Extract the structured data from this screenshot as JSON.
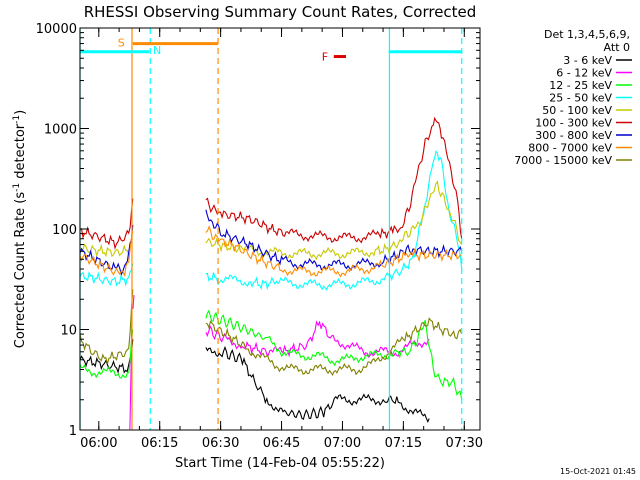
{
  "chart_data": {
    "type": "line",
    "title": "RHESSI Observing Summary Count Rates, Corrected",
    "xlabel": "Start Time (14-Feb-04 05:55:22)",
    "ylabel": "Corrected Count Rate (s⁻¹ detector⁻¹)",
    "ylabel_parts": {
      "main": "Corrected Count Rate (s",
      "sup1": "-1",
      "mid": " detector",
      "sup2": "-1",
      "end": ")"
    },
    "x_unit": "minutes after 05:55:22",
    "xlim": [
      0,
      98.5
    ],
    "ylim": [
      1,
      10000
    ],
    "yscale": "log",
    "x_ticks": [
      {
        "x": 4.63,
        "label": "06:00"
      },
      {
        "x": 19.63,
        "label": "06:15"
      },
      {
        "x": 34.63,
        "label": "06:30"
      },
      {
        "x": 49.63,
        "label": "06:45"
      },
      {
        "x": 64.63,
        "label": "07:00"
      },
      {
        "x": 79.63,
        "label": "07:15"
      },
      {
        "x": 94.63,
        "label": "07:30"
      }
    ],
    "y_ticks": [
      {
        "y": 1,
        "label": "1"
      },
      {
        "y": 10,
        "label": "10"
      },
      {
        "y": 100,
        "label": "100"
      },
      {
        "y": 1000,
        "label": "1000"
      },
      {
        "y": 10000,
        "label": "10000"
      }
    ],
    "legend_header": [
      "Det 1,3,4,5,6,9,",
      "Att 0"
    ],
    "legend_position": "right",
    "series": [
      {
        "name": "3 - 6 keV",
        "color": "#000000",
        "segments": [
          [
            [
              0,
              5
            ],
            [
              6,
              4.5
            ],
            [
              12,
              4
            ],
            [
              13,
              8
            ]
          ],
          [
            [
              31,
              6
            ],
            [
              35,
              6
            ],
            [
              40,
              5
            ],
            [
              43,
              3
            ],
            [
              46,
              2
            ],
            [
              50,
              1.5
            ],
            [
              55,
              1.4
            ],
            [
              60,
              1.5
            ],
            [
              63,
              2
            ],
            [
              67,
              2
            ],
            [
              71,
              2
            ],
            [
              75,
              2
            ],
            [
              78,
              2
            ],
            [
              82,
              1.5
            ],
            [
              86,
              1.3
            ]
          ]
        ]
      },
      {
        "name": "6 - 12 keV",
        "color": "#ff00ff",
        "segments": [
          [
            [
              12.3,
              1
            ],
            [
              12.8,
              15
            ],
            [
              13.3,
              22
            ]
          ],
          [
            [
              31,
              10
            ],
            [
              36,
              8
            ],
            [
              40,
              7
            ],
            [
              46,
              6
            ],
            [
              50,
              6
            ],
            [
              56,
              7
            ],
            [
              59,
              12
            ],
            [
              62,
              8
            ],
            [
              66,
              7
            ],
            [
              70,
              6
            ],
            [
              74,
              6
            ],
            [
              78,
              6
            ],
            [
              82,
              7
            ],
            [
              86,
              8
            ]
          ]
        ]
      },
      {
        "name": "12 - 25 keV",
        "color": "#00ff00",
        "segments": [
          [
            [
              0,
              4
            ],
            [
              4,
              3.8
            ],
            [
              8,
              3.7
            ],
            [
              12,
              3.6
            ],
            [
              13,
              10
            ]
          ],
          [
            [
              31,
              14
            ],
            [
              36,
              12
            ],
            [
              41,
              10
            ],
            [
              46,
              8
            ],
            [
              50,
              6
            ],
            [
              54,
              5.5
            ],
            [
              58,
              5.5
            ],
            [
              62,
              5
            ],
            [
              66,
              5
            ],
            [
              70,
              5.5
            ],
            [
              74,
              5.5
            ],
            [
              78,
              6
            ],
            [
              81,
              6
            ],
            [
              83,
              8
            ],
            [
              85,
              12
            ],
            [
              87,
              4
            ],
            [
              89,
              3
            ],
            [
              92,
              3
            ],
            [
              94,
              2
            ]
          ]
        ]
      },
      {
        "name": "25 - 50 keV",
        "color": "#00ffff",
        "segments": [
          [
            [
              0,
              34
            ],
            [
              3,
              33
            ],
            [
              6,
              31
            ],
            [
              9,
              30
            ],
            [
              12,
              32
            ],
            [
              13,
              45
            ]
          ],
          [
            [
              31,
              34
            ],
            [
              34,
              32
            ],
            [
              38,
              31
            ],
            [
              42,
              30
            ],
            [
              45,
              28
            ],
            [
              48,
              30
            ],
            [
              52,
              29
            ],
            [
              56,
              28
            ],
            [
              60,
              28
            ],
            [
              64,
              28
            ],
            [
              68,
              29
            ],
            [
              72,
              30
            ],
            [
              76,
              34
            ],
            [
              79,
              38
            ],
            [
              82,
              50
            ],
            [
              85,
              180
            ],
            [
              87,
              480
            ],
            [
              88,
              600
            ],
            [
              89,
              450
            ],
            [
              91,
              140
            ],
            [
              93,
              80
            ],
            [
              94,
              40
            ]
          ]
        ]
      },
      {
        "name": "50 - 100 keV",
        "color": "#c8c800",
        "segments": [
          [
            [
              0,
              65
            ],
            [
              3,
              62
            ],
            [
              6,
              60
            ],
            [
              9,
              58
            ],
            [
              12,
              62
            ],
            [
              13,
              80
            ]
          ],
          [
            [
              31,
              75
            ],
            [
              34,
              70
            ],
            [
              37,
              66
            ],
            [
              40,
              63
            ],
            [
              44,
              60
            ],
            [
              48,
              58
            ],
            [
              52,
              57
            ],
            [
              56,
              57
            ],
            [
              60,
              57
            ],
            [
              64,
              57
            ],
            [
              68,
              58
            ],
            [
              72,
              60
            ],
            [
              75,
              62
            ],
            [
              78,
              70
            ],
            [
              80,
              85
            ],
            [
              82,
              100
            ],
            [
              84,
              120
            ],
            [
              86,
              200
            ],
            [
              88,
              280
            ],
            [
              90,
              180
            ],
            [
              92,
              120
            ],
            [
              94,
              70
            ]
          ]
        ]
      },
      {
        "name": "100 - 300 keV",
        "color": "#cc0000",
        "segments": [
          [
            [
              0,
              95
            ],
            [
              3,
              88
            ],
            [
              6,
              80
            ],
            [
              9,
              72
            ],
            [
              12,
              90
            ],
            [
              13,
              200
            ]
          ],
          [
            [
              31,
              190
            ],
            [
              33,
              155
            ],
            [
              35,
              140
            ],
            [
              38,
              135
            ],
            [
              41,
              128
            ],
            [
              44,
              115
            ],
            [
              47,
              100
            ],
            [
              50,
              92
            ],
            [
              54,
              87
            ],
            [
              58,
              85
            ],
            [
              62,
              83
            ],
            [
              66,
              82
            ],
            [
              70,
              83
            ],
            [
              74,
              88
            ],
            [
              77,
              95
            ],
            [
              79,
              100
            ],
            [
              81,
              160
            ],
            [
              83,
              350
            ],
            [
              85,
              700
            ],
            [
              87,
              1100
            ],
            [
              88,
              1200
            ],
            [
              89,
              900
            ],
            [
              91,
              450
            ],
            [
              93,
              180
            ],
            [
              94,
              80
            ]
          ]
        ]
      },
      {
        "name": "300 - 800 keV",
        "color": "#0000cc",
        "segments": [
          [
            [
              0,
              60
            ],
            [
              3,
              52
            ],
            [
              6,
              45
            ],
            [
              9,
              40
            ],
            [
              11,
              40
            ],
            [
              12,
              55
            ],
            [
              13,
              110
            ]
          ],
          [
            [
              31,
              140
            ],
            [
              33,
              110
            ],
            [
              35,
              92
            ],
            [
              38,
              80
            ],
            [
              41,
              72
            ],
            [
              44,
              62
            ],
            [
              47,
              54
            ],
            [
              50,
              48
            ],
            [
              54,
              45
            ],
            [
              58,
              44
            ],
            [
              62,
              44
            ],
            [
              66,
              44
            ],
            [
              70,
              45
            ],
            [
              74,
              47
            ],
            [
              77,
              52
            ],
            [
              80,
              60
            ],
            [
              82,
              63
            ],
            [
              85,
              60
            ],
            [
              88,
              60
            ],
            [
              91,
              60
            ],
            [
              94,
              60
            ]
          ]
        ]
      },
      {
        "name": "800 - 7000 keV",
        "color": "#ff8c00",
        "segments": [
          [
            [
              0,
              55
            ],
            [
              3,
              48
            ],
            [
              6,
              42
            ],
            [
              9,
              37
            ],
            [
              11,
              37
            ],
            [
              12,
              48
            ],
            [
              13,
              95
            ]
          ],
          [
            [
              31,
              100
            ],
            [
              33,
              85
            ],
            [
              35,
              75
            ],
            [
              38,
              68
            ],
            [
              41,
              58
            ],
            [
              44,
              50
            ],
            [
              47,
              44
            ],
            [
              50,
              40
            ],
            [
              54,
              38
            ],
            [
              58,
              38
            ],
            [
              62,
              38
            ],
            [
              66,
              38
            ],
            [
              70,
              40
            ],
            [
              74,
              43
            ],
            [
              77,
              48
            ],
            [
              80,
              54
            ],
            [
              82,
              55
            ],
            [
              85,
              55
            ],
            [
              88,
              55
            ],
            [
              91,
              55
            ],
            [
              94,
              55
            ]
          ]
        ]
      },
      {
        "name": "7000 - 15000 keV",
        "color": "#808000",
        "segments": [
          [
            [
              0,
              8
            ],
            [
              3,
              6
            ],
            [
              6,
              5
            ],
            [
              9,
              5.5
            ],
            [
              12,
              6
            ],
            [
              13,
              25
            ]
          ],
          [
            [
              31,
              12
            ],
            [
              34,
              10
            ],
            [
              37,
              8.5
            ],
            [
              40,
              7
            ],
            [
              44,
              5.5
            ],
            [
              48,
              4.5
            ],
            [
              52,
              4
            ],
            [
              56,
              4
            ],
            [
              60,
              4
            ],
            [
              64,
              4
            ],
            [
              68,
              4
            ],
            [
              72,
              4.5
            ],
            [
              76,
              6
            ],
            [
              80,
              8
            ],
            [
              83,
              10
            ],
            [
              86,
              12
            ],
            [
              89,
              10
            ],
            [
              92,
              9
            ],
            [
              94,
              9
            ]
          ]
        ]
      }
    ],
    "flags": [
      {
        "label": "S",
        "color": "#ff8c00",
        "segments": [
          [
            13,
            34
          ]
        ],
        "level": 7000
      },
      {
        "label": "N",
        "color": "#00ffff",
        "segments": [
          [
            0,
            17
          ],
          [
            76,
            94
          ]
        ],
        "level": 5800
      },
      {
        "label": "F",
        "color": "#dd0000",
        "segments": [
          [
            62.5,
            65.5
          ]
        ],
        "level": 5200
      }
    ],
    "vertical_markers": [
      {
        "x": 0,
        "color": "#00ffff",
        "style": "solid"
      },
      {
        "x": 12.8,
        "color": "#ff8c00",
        "style": "solid"
      },
      {
        "x": 17.3,
        "color": "#00ffff",
        "style": "dashed"
      },
      {
        "x": 34,
        "color": "#ff8c00",
        "style": "dashed"
      },
      {
        "x": 76.2,
        "color": "#00ffff",
        "style": "solid"
      },
      {
        "x": 94,
        "color": "#00ffff",
        "style": "dashed"
      }
    ],
    "footer_timestamp": "15-Oct-2021 01:45"
  }
}
